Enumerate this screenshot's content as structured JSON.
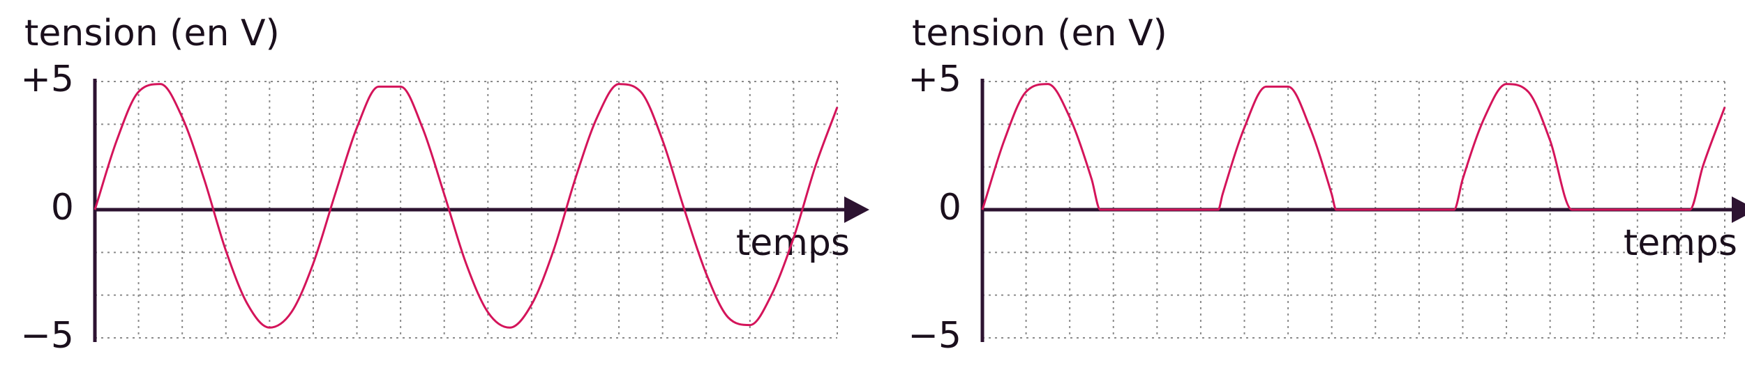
{
  "chart_data": [
    {
      "type": "line",
      "ylabel": "tension (en V)",
      "xlabel": "temps",
      "x": [
        0,
        0.5,
        1,
        1.5,
        2,
        2.5,
        3,
        3.5,
        4,
        4.5,
        5,
        5.5,
        6,
        6.5,
        7,
        7.5,
        8,
        8.5,
        9,
        9.5,
        10,
        10.5,
        11,
        11.5,
        12,
        12.5,
        13,
        13.5,
        14,
        14.5,
        15,
        15.5,
        16,
        16.5,
        17
      ],
      "values": [
        0,
        2.7,
        4.6,
        4.9,
        3.6,
        1.2,
        -1.6,
        -3.7,
        -4.6,
        -4.0,
        -2.1,
        0.6,
        3.2,
        4.8,
        4.8,
        3.2,
        0.6,
        -2.1,
        -4.0,
        -4.6,
        -3.7,
        -1.6,
        1.2,
        3.6,
        4.9,
        4.6,
        2.7,
        0,
        -2.5,
        -4.2,
        -4.5,
        -3.3,
        -1.1,
        1.7,
        4.0
      ],
      "color": "#d4145a",
      "xlim": [
        0,
        17
      ],
      "ylim": [
        -5,
        5
      ],
      "yticks": [
        {
          "value": 5,
          "label": "+5"
        },
        0,
        {
          "value": -5,
          "label": "−5"
        }
      ],
      "grid": true
    },
    {
      "type": "line",
      "ylabel": "tension (en V)",
      "xlabel": "temps",
      "x": [
        0,
        0.5,
        1,
        1.5,
        2,
        2.5,
        2.7,
        5.4,
        5.5,
        6,
        6.5,
        7,
        7.5,
        8,
        8.1,
        10.8,
        11,
        11.5,
        12,
        12.5,
        13,
        13.5,
        16.2,
        16.5,
        17
      ],
      "values": [
        0,
        2.7,
        4.6,
        4.9,
        3.6,
        1.2,
        0,
        0,
        0.6,
        3.2,
        4.8,
        4.8,
        3.2,
        0.6,
        0,
        0,
        1.2,
        3.6,
        4.9,
        4.6,
        2.7,
        0,
        0,
        1.7,
        4.0
      ],
      "color": "#d4145a",
      "xlim": [
        0,
        17
      ],
      "ylim": [
        -5,
        5
      ],
      "yticks": [
        {
          "value": 5,
          "label": "+5"
        },
        0,
        {
          "value": -5,
          "label": "−5"
        }
      ],
      "grid": true
    }
  ]
}
